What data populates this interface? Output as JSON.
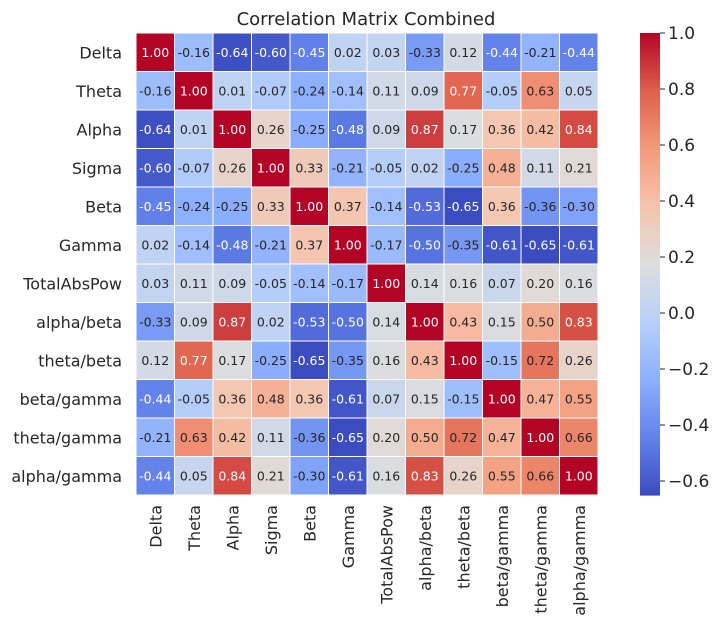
{
  "chart_data": {
    "type": "heatmap",
    "title": "Correlation Matrix Combined",
    "variables": [
      "Delta",
      "Theta",
      "Alpha",
      "Sigma",
      "Beta",
      "Gamma",
      "TotalAbsPow",
      "alpha/beta",
      "theta/beta",
      "beta/gamma",
      "theta/gamma",
      "alpha/gamma"
    ],
    "matrix": [
      [
        1.0,
        -0.16,
        -0.64,
        -0.6,
        -0.45,
        0.02,
        0.03,
        -0.33,
        0.12,
        -0.44,
        -0.21,
        -0.44
      ],
      [
        -0.16,
        1.0,
        0.01,
        -0.07,
        -0.24,
        -0.14,
        0.11,
        0.09,
        0.77,
        -0.05,
        0.63,
        0.05
      ],
      [
        -0.64,
        0.01,
        1.0,
        0.26,
        -0.25,
        -0.48,
        0.09,
        0.87,
        0.17,
        0.36,
        0.42,
        0.84
      ],
      [
        -0.6,
        -0.07,
        0.26,
        1.0,
        0.33,
        -0.21,
        -0.05,
        0.02,
        -0.25,
        0.48,
        0.11,
        0.21
      ],
      [
        -0.45,
        -0.24,
        -0.25,
        0.33,
        1.0,
        0.37,
        -0.14,
        -0.53,
        -0.65,
        0.36,
        -0.36,
        -0.3
      ],
      [
        0.02,
        -0.14,
        -0.48,
        -0.21,
        0.37,
        1.0,
        -0.17,
        -0.5,
        -0.35,
        -0.61,
        -0.65,
        -0.61
      ],
      [
        0.03,
        0.11,
        0.09,
        -0.05,
        -0.14,
        -0.17,
        1.0,
        0.14,
        0.16,
        0.07,
        0.2,
        0.16
      ],
      [
        -0.33,
        0.09,
        0.87,
        0.02,
        -0.53,
        -0.5,
        0.14,
        1.0,
        0.43,
        0.15,
        0.5,
        0.83
      ],
      [
        0.12,
        0.77,
        0.17,
        -0.25,
        -0.65,
        -0.35,
        0.16,
        0.43,
        1.0,
        -0.15,
        0.72,
        0.26
      ],
      [
        -0.44,
        -0.05,
        0.36,
        0.48,
        0.36,
        -0.61,
        0.07,
        0.15,
        -0.15,
        1.0,
        0.47,
        0.55
      ],
      [
        -0.21,
        0.63,
        0.42,
        0.11,
        -0.36,
        -0.65,
        0.2,
        0.5,
        0.72,
        0.47,
        1.0,
        0.66
      ],
      [
        -0.44,
        0.05,
        0.84,
        0.21,
        -0.3,
        -0.61,
        0.16,
        0.83,
        0.26,
        0.55,
        0.66,
        1.0
      ]
    ],
    "value_format": "2 decimals",
    "colormap": "coolwarm",
    "vmin": -0.65,
    "vmax": 1.0,
    "colorbar_ticks": [
      "−0.6",
      "−0.4",
      "−0.2",
      "0.0",
      "0.2",
      "0.4",
      "0.6",
      "0.8",
      "1.0"
    ],
    "colorbar_tick_values": [
      -0.6,
      -0.4,
      -0.2,
      0.0,
      0.2,
      0.4,
      0.6,
      0.8,
      1.0
    ],
    "colorbar_position": "right",
    "grid": "white cell borders"
  }
}
